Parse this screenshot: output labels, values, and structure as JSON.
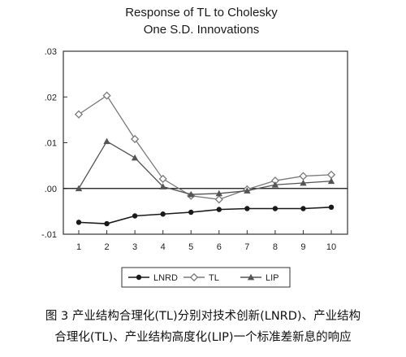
{
  "chart_data": {
    "type": "line",
    "title_lines": [
      "Response of TL to Cholesky",
      "One S.D. Innovations"
    ],
    "x": [
      1,
      2,
      3,
      4,
      5,
      6,
      7,
      8,
      9,
      10
    ],
    "xlabel": "",
    "ylabel": "",
    "ylim": [
      -0.01,
      0.03
    ],
    "y_ticks": [
      ".03",
      ".02",
      ".01",
      ".00",
      "-.01"
    ],
    "y_tick_values": [
      0.03,
      0.02,
      0.01,
      0.0,
      -0.01
    ],
    "x_ticks": [
      "1",
      "2",
      "3",
      "4",
      "5",
      "6",
      "7",
      "8",
      "9",
      "10"
    ],
    "zero_line": true,
    "grid": false,
    "legend_position": "bottom",
    "series": [
      {
        "name": "LNRD",
        "marker": "circle",
        "values": [
          -0.0074,
          -0.0077,
          -0.006,
          -0.0056,
          -0.0052,
          -0.0046,
          -0.0044,
          -0.0044,
          -0.0044,
          -0.0041
        ]
      },
      {
        "name": "TL",
        "marker": "diamond",
        "values": [
          0.0162,
          0.0203,
          0.0108,
          0.0021,
          -0.0016,
          -0.0024,
          -0.0002,
          0.0017,
          0.0027,
          0.003
        ]
      },
      {
        "name": "LIP",
        "marker": "triangle",
        "values": [
          0.0,
          0.0103,
          0.0067,
          0.0004,
          -0.0013,
          -0.0011,
          -0.0005,
          0.0008,
          0.0012,
          0.0016
        ]
      }
    ],
    "colors": {
      "LNRD": "#1a1a1a",
      "TL": "#7a7a7a",
      "LIP": "#555555"
    }
  },
  "caption": {
    "line1": "图 3  产业结构合理化(TL)分别对技术创新(LNRD)、产业结构",
    "line2": "合理化(TL)、产业结构高度化(LIP)一个标准差新息的响应"
  }
}
